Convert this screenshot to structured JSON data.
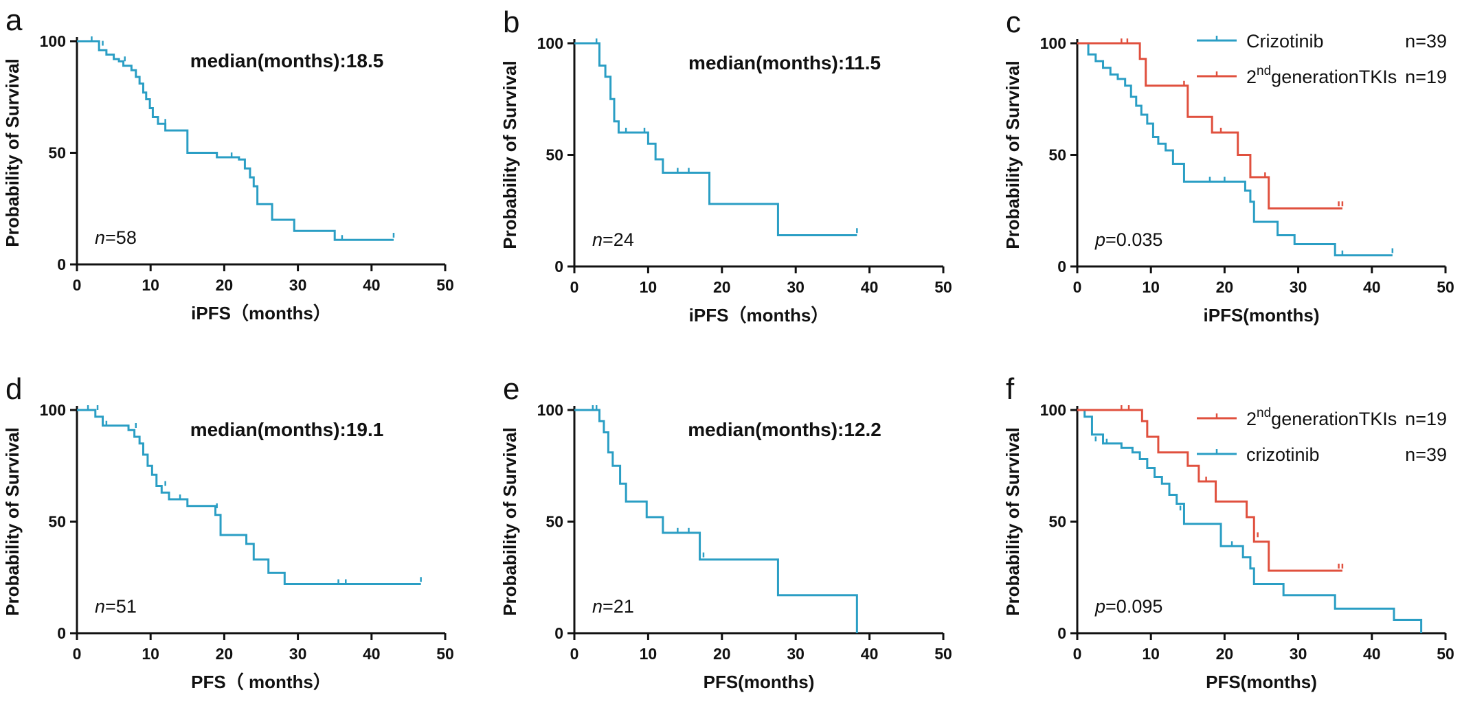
{
  "colors": {
    "blue": "#2a9ec4",
    "red": "#e0503e",
    "axis": "#111111"
  },
  "chart_data": [
    {
      "type": "line",
      "letter": "a",
      "xlabel": "iPFS（months）",
      "ylabel": "Probability of Survival",
      "xlim": [
        0,
        50
      ],
      "ylim": [
        0,
        100
      ],
      "xticks": [
        0,
        10,
        20,
        30,
        40,
        50
      ],
      "yticks": [
        0,
        50,
        100
      ],
      "annotation": "median(months):18.5",
      "stat": {
        "prefix": "n",
        "value": "=58"
      },
      "series": [
        {
          "color": "blue",
          "x": [
            0,
            3,
            4,
            5,
            5.7,
            6.3,
            7.4,
            8,
            8.5,
            9,
            9.4,
            9.9,
            10.3,
            11,
            12,
            15,
            19,
            20.5,
            22,
            22.8,
            23.5,
            24,
            24.5,
            26.5,
            29.5,
            35,
            43
          ],
          "y": [
            100,
            96,
            94,
            92,
            91,
            89,
            87,
            84,
            81,
            77,
            74,
            70,
            66,
            63,
            60,
            50,
            48,
            48,
            47,
            43,
            39,
            35,
            27,
            20,
            15,
            11,
            11
          ],
          "censors": [
            [
              2,
              100
            ],
            [
              3.5,
              98
            ],
            [
              6.5,
              91
            ],
            [
              11,
              63
            ],
            [
              12,
              63
            ],
            [
              19,
              48
            ],
            [
              21,
              48
            ],
            [
              35,
              11
            ],
            [
              36,
              11
            ],
            [
              43,
              12
            ]
          ]
        }
      ]
    },
    {
      "type": "line",
      "letter": "b",
      "xlabel": "iPFS（months）",
      "ylabel": "Probability of Survival",
      "xlim": [
        0,
        50
      ],
      "ylim": [
        0,
        100
      ],
      "xticks": [
        0,
        10,
        20,
        30,
        40,
        50
      ],
      "yticks": [
        0,
        50,
        100
      ],
      "annotation": "median(months):11.5",
      "stat": {
        "prefix": "n",
        "value": "=24"
      },
      "series": [
        {
          "color": "blue",
          "x": [
            0,
            3.4,
            4.2,
            4.9,
            5.4,
            6,
            10,
            11,
            12,
            18.3,
            27.6,
            38.3
          ],
          "y": [
            100,
            90,
            85,
            75,
            65,
            60,
            55,
            48,
            42,
            28,
            14,
            14
          ],
          "censors": [
            [
              3,
              100
            ],
            [
              7,
              60
            ],
            [
              9.5,
              60
            ],
            [
              14,
              42
            ],
            [
              15.5,
              42
            ],
            [
              38.3,
              15
            ]
          ]
        }
      ]
    },
    {
      "type": "line",
      "letter": "c",
      "xlabel": "iPFS(months)",
      "ylabel": "Probability of Survival",
      "xlim": [
        0,
        50
      ],
      "ylim": [
        0,
        100
      ],
      "xticks": [
        0,
        10,
        20,
        30,
        40,
        50
      ],
      "yticks": [
        0,
        50,
        100
      ],
      "annotation": "",
      "stat": {
        "prefix": "p",
        "value": "=0.035"
      },
      "legend_entries": [
        {
          "label": "Crizotinib",
          "sup": "",
          "suffix": "",
          "n": "n=39",
          "color": "blue"
        },
        {
          "label": "2",
          "sup": "nd",
          "suffix": "generationTKIs",
          "n": "n=19",
          "color": "red"
        }
      ],
      "series": [
        {
          "color": "blue",
          "x": [
            0,
            1.5,
            2.5,
            3.5,
            4.5,
            5.5,
            6.5,
            7.3,
            8,
            8.7,
            9.5,
            10.3,
            11,
            12,
            13,
            14.5,
            22,
            22.8,
            23.5,
            24,
            27.2,
            29.5,
            35,
            42.8
          ],
          "y": [
            100,
            95,
            92,
            89,
            86,
            84,
            81,
            76,
            72,
            68,
            64,
            58,
            55,
            52,
            46,
            38,
            38,
            34,
            29,
            20,
            14,
            10,
            5,
            5
          ],
          "censors": [
            [
              18,
              38
            ],
            [
              20,
              38
            ],
            [
              36,
              5
            ],
            [
              42.8,
              6
            ]
          ]
        },
        {
          "color": "red",
          "x": [
            0,
            8.5,
            9.3,
            15,
            18.3,
            21.8,
            23.5,
            26,
            36
          ],
          "y": [
            100,
            93,
            81,
            67,
            60,
            50,
            40,
            26,
            26
          ],
          "censors": [
            [
              6,
              100
            ],
            [
              6.8,
              100
            ],
            [
              14.5,
              81
            ],
            [
              19.5,
              60
            ],
            [
              23.5,
              40
            ],
            [
              25.5,
              40
            ],
            [
              35.5,
              27
            ],
            [
              36,
              27
            ]
          ]
        }
      ]
    },
    {
      "type": "line",
      "letter": "d",
      "xlabel": "PFS（ months）",
      "ylabel": "Probability of Survival",
      "xlim": [
        0,
        50
      ],
      "ylim": [
        0,
        100
      ],
      "xticks": [
        0,
        10,
        20,
        30,
        40,
        50
      ],
      "yticks": [
        0,
        50,
        100
      ],
      "annotation": "median(months):19.1",
      "stat": {
        "prefix": "n",
        "value": "=51"
      },
      "series": [
        {
          "color": "blue",
          "x": [
            0,
            2.5,
            3.5,
            5.5,
            7,
            7.8,
            8.5,
            9,
            9.6,
            10.2,
            10.8,
            11.5,
            12.5,
            15,
            18.8,
            19.5,
            22,
            23,
            24,
            26,
            28.2,
            46.7
          ],
          "y": [
            100,
            97,
            93,
            93,
            91,
            88,
            85,
            80,
            75,
            71,
            66,
            63,
            60,
            57,
            53,
            44,
            44,
            40,
            33,
            27,
            22,
            22
          ],
          "censors": [
            [
              1.5,
              100
            ],
            [
              2.8,
              100
            ],
            [
              4,
              93
            ],
            [
              8,
              92
            ],
            [
              12,
              66
            ],
            [
              14,
              60
            ],
            [
              19,
              56
            ],
            [
              35.5,
              22
            ],
            [
              36.5,
              22
            ],
            [
              46.7,
              23
            ]
          ]
        }
      ]
    },
    {
      "type": "line",
      "letter": "e",
      "xlabel": "PFS(months)",
      "ylabel": "Probability of Survival",
      "xlim": [
        0,
        50
      ],
      "ylim": [
        0,
        100
      ],
      "xticks": [
        0,
        10,
        20,
        30,
        40,
        50
      ],
      "yticks": [
        0,
        50,
        100
      ],
      "annotation": "median(months):12.2",
      "stat": {
        "prefix": "n",
        "value": "=21"
      },
      "series": [
        {
          "color": "blue",
          "x": [
            0,
            3.4,
            4,
            4.6,
            5.2,
            6.2,
            7,
            9.8,
            12,
            17,
            27.6,
            38.3,
            38.3
          ],
          "y": [
            100,
            95,
            90,
            81,
            75,
            67,
            59,
            52,
            45,
            33,
            17,
            17,
            0
          ],
          "censors": [
            [
              2.5,
              100
            ],
            [
              3,
              100
            ],
            [
              14,
              45
            ],
            [
              15.5,
              45
            ],
            [
              17.5,
              34
            ]
          ]
        }
      ]
    },
    {
      "type": "line",
      "letter": "f",
      "xlabel": "PFS(months)",
      "ylabel": "Probability of Survival",
      "xlim": [
        0,
        50
      ],
      "ylim": [
        0,
        100
      ],
      "xticks": [
        0,
        10,
        20,
        30,
        40,
        50
      ],
      "yticks": [
        0,
        50,
        100
      ],
      "annotation": "",
      "stat": {
        "prefix": "p",
        "value": "=0.095"
      },
      "legend_entries": [
        {
          "label": "2",
          "sup": "nd",
          "suffix": "generationTKIs",
          "n": "n=19",
          "color": "red"
        },
        {
          "label": "crizotinib",
          "sup": "",
          "suffix": "",
          "n": "n=39",
          "color": "blue"
        }
      ],
      "series": [
        {
          "color": "blue",
          "x": [
            0,
            1,
            2,
            3.5,
            6,
            7.5,
            8.5,
            9.5,
            10.5,
            11.5,
            12.5,
            13.5,
            14.5,
            18.8,
            19.5,
            22.5,
            23.5,
            24,
            28,
            35,
            43,
            46.7,
            46.7
          ],
          "y": [
            100,
            97,
            89,
            85,
            83,
            81,
            78,
            74,
            70,
            67,
            62,
            58,
            49,
            49,
            39,
            34,
            29,
            22,
            17,
            11,
            6,
            6,
            0
          ],
          "censors": [
            [
              2.5,
              86
            ],
            [
              4,
              85
            ],
            [
              12.5,
              62
            ],
            [
              14,
              55
            ],
            [
              21,
              39
            ]
          ]
        },
        {
          "color": "red",
          "x": [
            0,
            8.8,
            9.5,
            11,
            15,
            16.5,
            18.8,
            23,
            24,
            26,
            36
          ],
          "y": [
            100,
            95,
            88,
            81,
            75,
            68,
            59,
            52,
            41,
            28,
            28
          ],
          "censors": [
            [
              6,
              100
            ],
            [
              7,
              100
            ],
            [
              17.5,
              68
            ],
            [
              24.5,
              43
            ],
            [
              35.5,
              29
            ],
            [
              36,
              29
            ]
          ]
        }
      ]
    }
  ]
}
